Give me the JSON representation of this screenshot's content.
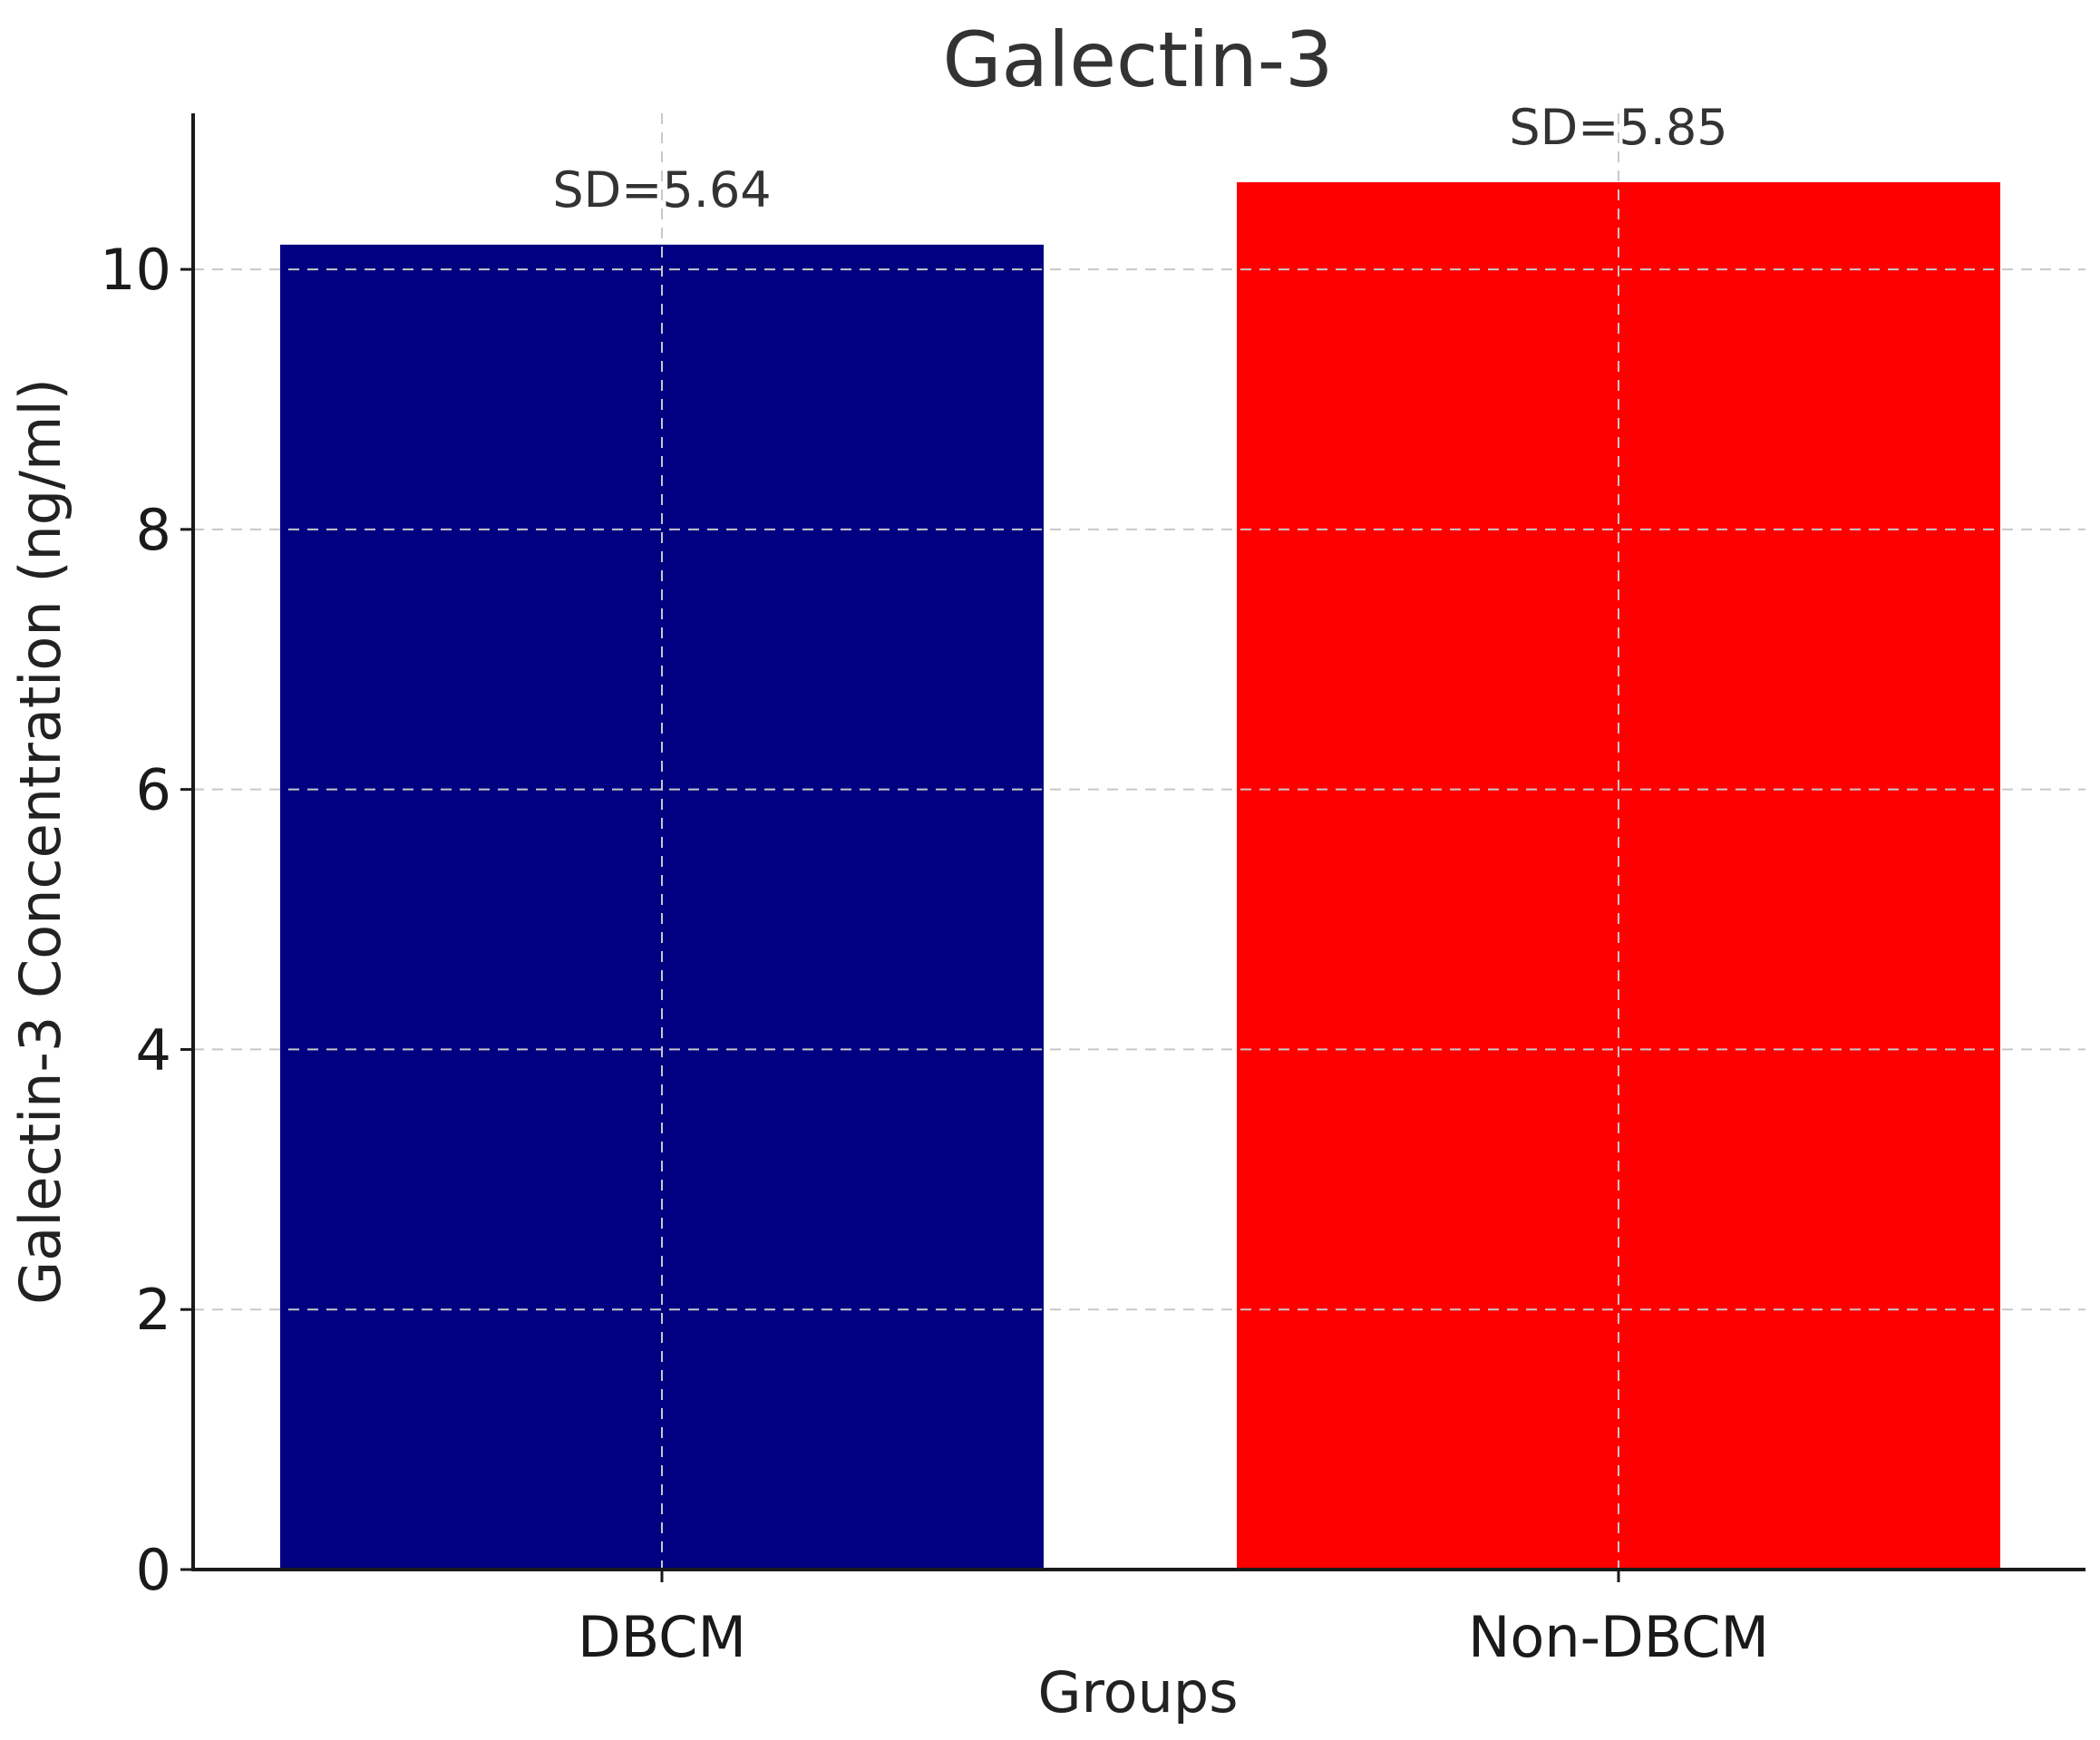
{
  "chart_data": {
    "type": "bar",
    "title": "Galectin-3",
    "xlabel": "Groups",
    "ylabel": "Galectin-3 Concentration (ng/ml)",
    "categories": [
      "DBCM",
      "Non-DBCM"
    ],
    "values": [
      10.19,
      10.67
    ],
    "bar_labels": [
      "SD=5.64",
      "SD=5.85"
    ],
    "colors": [
      "#000080",
      "#ff0000"
    ],
    "ylim": [
      0,
      11.2
    ],
    "yticks": [
      0,
      2,
      4,
      6,
      8,
      10
    ],
    "grid": true,
    "legend": "none"
  }
}
